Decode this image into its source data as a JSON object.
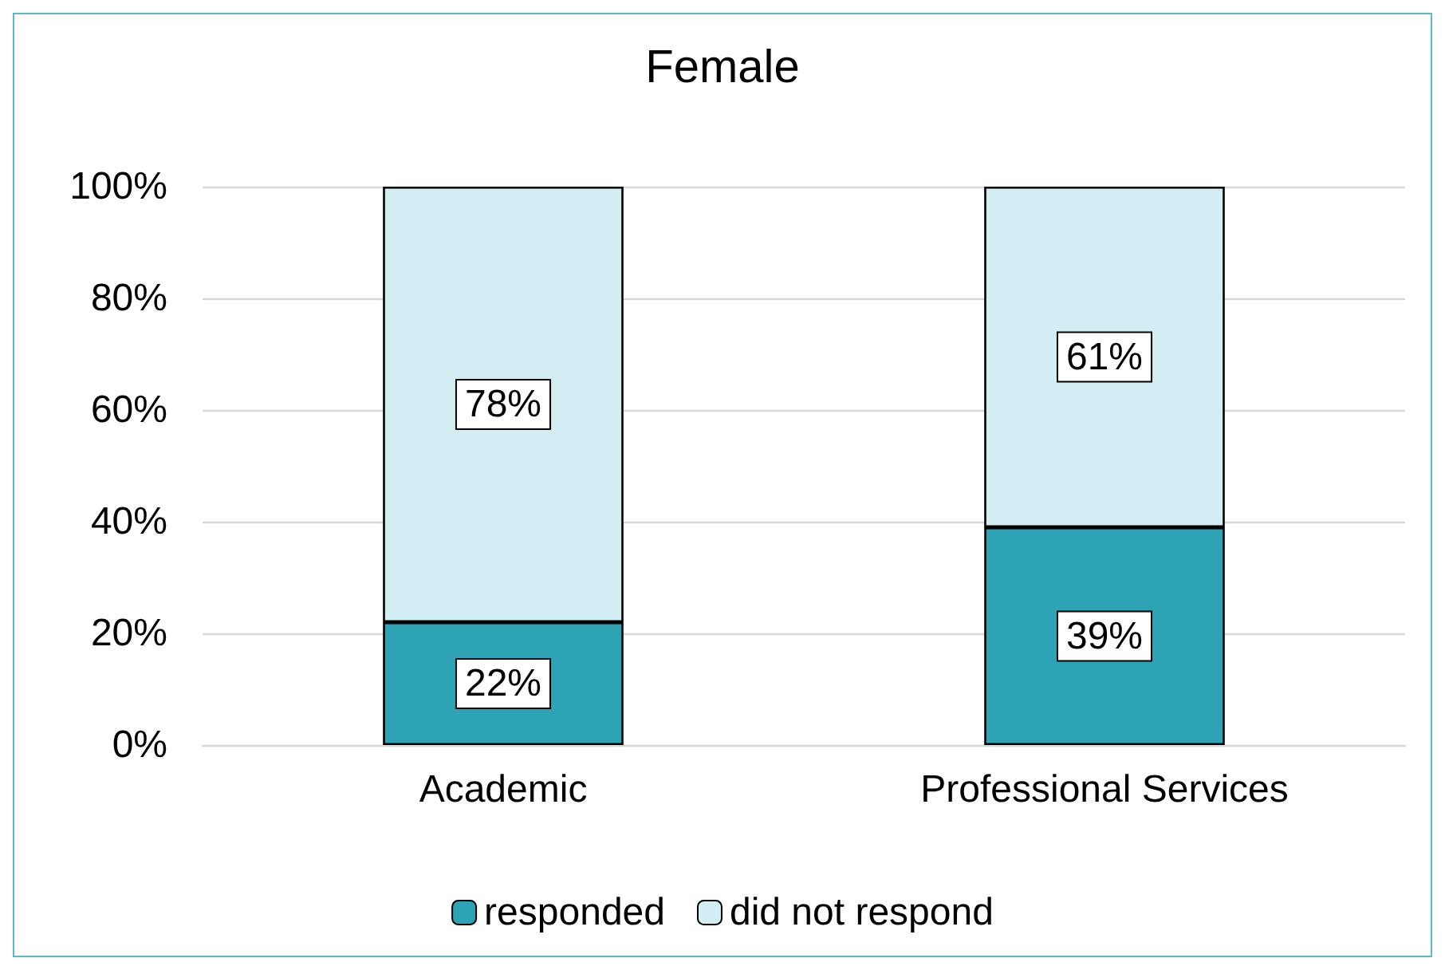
{
  "chart_data": {
    "type": "bar",
    "title": "Female",
    "categories": [
      "Academic",
      "Professional Services"
    ],
    "stacked": true,
    "series": [
      {
        "name": "responded",
        "color": "#2ea3b5",
        "values": [
          22,
          39
        ],
        "value_labels": [
          "22%",
          "39%"
        ]
      },
      {
        "name": "did not respond",
        "color": "#d3eef2",
        "values": [
          78,
          61
        ],
        "value_labels": [
          "78%",
          "61%"
        ]
      }
    ],
    "ylim": [
      0,
      100
    ],
    "yticks": [
      {
        "value": 0,
        "label": "0%"
      },
      {
        "value": 20,
        "label": "20%"
      },
      {
        "value": 40,
        "label": "40%"
      },
      {
        "value": 60,
        "label": "60%"
      },
      {
        "value": 80,
        "label": "80%"
      },
      {
        "value": 100,
        "label": "100%"
      }
    ],
    "grid": "y",
    "legend": "bottom"
  }
}
